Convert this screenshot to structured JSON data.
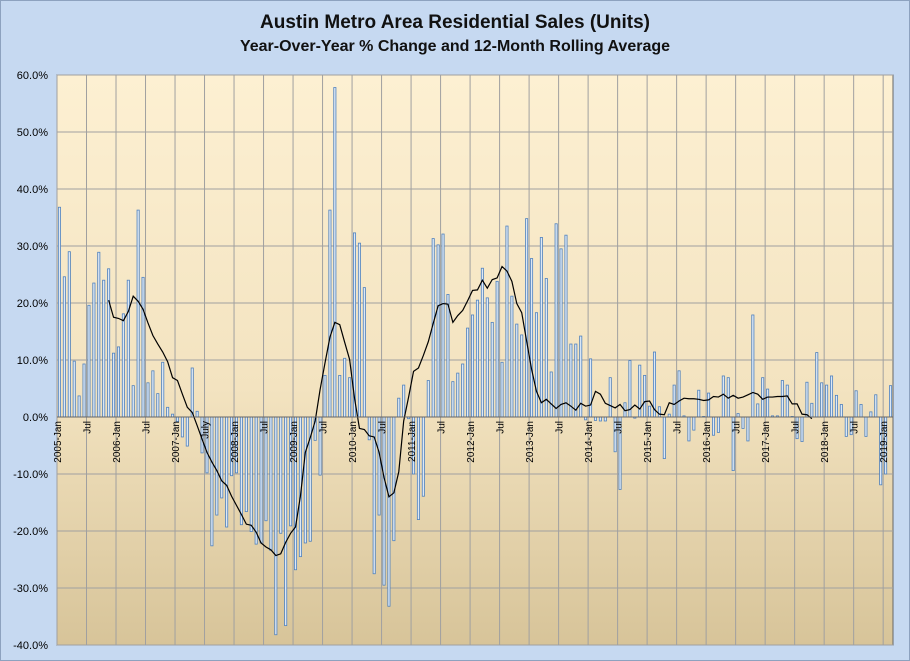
{
  "chart_data": {
    "type": "bar",
    "title": "Austin Metro Area Residential Sales (Units)",
    "subtitle": "Year-Over-Year % Change and 12-Month Rolling Average",
    "ylim": [
      -40,
      60
    ],
    "ytick_step": 10,
    "y_tick_labels": [
      "60.0%",
      "50.0%",
      "40.0%",
      "30.0%",
      "20.0%",
      "10.0%",
      "0.0%",
      "-10.0%",
      "-20.0%",
      "-30.0%",
      "-40.0%"
    ],
    "x_tick_labels": [
      "2005-Jan",
      "Jul",
      "2006-Jan",
      "Jul",
      "2007-Jan",
      "July",
      "2008-Jan",
      "Jul",
      "2009-Jan",
      "Jul",
      "2010-Jan",
      "Jul",
      "2011-Jan",
      "Jul",
      "2012-Jan",
      "Jul",
      "2013-Jan",
      "Jul",
      "2014-Jan",
      "Jul",
      "2015-Jan",
      "Jul",
      "2016-Jan",
      "Jul",
      "2017-Jan",
      "Jul",
      "2018-Jan",
      "Jul",
      "2019-Jan"
    ],
    "start_month": "2005-Jan",
    "series": [
      {
        "name": "Year-Over-Year % Change",
        "type": "bar",
        "color": "#4f81bd",
        "values": [
          36.8,
          24.6,
          29.0,
          9.8,
          3.7,
          9.3,
          19.6,
          23.5,
          28.9,
          24.0,
          26.0,
          11.2,
          12.3,
          18.1,
          24.0,
          5.5,
          36.3,
          24.5,
          6.0,
          8.1,
          4.1,
          9.6,
          1.7,
          0.5,
          -0.8,
          -3.5,
          -5.1,
          8.6,
          1.0,
          -6.3,
          -9.8,
          -22.6,
          -17.2,
          -14.2,
          -19.3,
          -10.3,
          -9.8,
          -18.9,
          -16.6,
          -20.1,
          -22.3,
          -22.1,
          -18.2,
          -23.4,
          -38.2,
          -20.4,
          -36.6,
          -19.1,
          -26.8,
          -24.5,
          -22.1,
          -21.8,
          -4.1,
          -10.2,
          7.3,
          36.3,
          57.8,
          7.3,
          10.3,
          6.9,
          32.3,
          30.5,
          22.7,
          -4.0,
          -27.5,
          -17.2,
          -29.5,
          -33.2,
          -21.7,
          3.3,
          5.6,
          -0.3,
          -10.0,
          -18.0,
          -13.9,
          6.4,
          31.3,
          30.2,
          32.1,
          21.5,
          6.2,
          7.7,
          9.3,
          15.6,
          17.9,
          20.5,
          26.1,
          20.9,
          16.6,
          23.8,
          9.6,
          33.5,
          21.2,
          16.3,
          14.4,
          34.8,
          27.8,
          18.3,
          31.5,
          24.3,
          7.9,
          33.9,
          29.5,
          31.9,
          12.8,
          12.8,
          14.2,
          -0.5,
          10.2,
          -0.6,
          -0.7,
          -0.7,
          6.9,
          -6.1,
          -12.7,
          2.5,
          9.9,
          -0.2,
          9.1,
          7.3,
          1.9,
          11.4,
          1.8,
          -7.3,
          0.5,
          5.6,
          8.1,
          0.2,
          -4.2,
          -2.3,
          4.7,
          0.1,
          4.2,
          -3.2,
          -2.7,
          7.2,
          6.9,
          -9.4,
          0.6,
          -2.0,
          -4.2,
          17.9,
          2.3,
          6.9,
          4.9,
          0.2,
          0.2,
          6.4,
          5.6,
          0.1,
          -3.8,
          -4.3,
          6.1,
          2.4,
          11.3,
          6.0,
          5.6,
          7.2,
          3.8,
          2.2,
          -3.4,
          -3.1,
          4.6,
          2.2,
          -3.4,
          0.9,
          3.9,
          -11.9,
          -10.0,
          5.5
        ]
      },
      {
        "name": "12-Month Rolling Average",
        "type": "line",
        "color": "#000000",
        "start_index": 10,
        "values": [
          20.5,
          17.5,
          17.3,
          16.9,
          18.5,
          21.2,
          20.3,
          18.9,
          16.5,
          14.3,
          12.8,
          11.4,
          9.7,
          6.9,
          6.4,
          4.0,
          1.7,
          0.8,
          -1.5,
          -3.9,
          -6.2,
          -7.9,
          -9.4,
          -11.2,
          -12.0,
          -13.9,
          -15.5,
          -17.1,
          -18.8,
          -19.0,
          -20.2,
          -22.1,
          -22.8,
          -23.3,
          -24.3,
          -24.0,
          -22.0,
          -20.4,
          -19.3,
          -13.9,
          -6.2,
          -3.6,
          -0.7,
          4.8,
          9.5,
          14.0,
          16.6,
          16.2,
          13.1,
          10.1,
          3.3,
          -2.0,
          -2.2,
          -3.3,
          -3.5,
          -6.2,
          -10.6,
          -14.0,
          -13.3,
          -9.6,
          -0.7,
          3.5,
          8.0,
          8.6,
          10.8,
          13.2,
          16.4,
          19.5,
          19.9,
          19.8,
          16.6,
          17.8,
          18.7,
          20.4,
          22.2,
          22.3,
          24.0,
          22.6,
          24.1,
          24.4,
          26.4,
          25.6,
          23.8,
          19.9,
          18.3,
          13.3,
          8.4,
          4.5,
          2.5,
          3.1,
          2.3,
          1.5,
          2.2,
          2.5,
          1.9,
          1.2,
          2.4,
          1.9,
          2.1,
          4.5,
          4.0,
          2.4,
          2.0,
          1.6,
          2.2,
          1.1,
          1.3,
          2.1,
          1.4,
          2.7,
          2.8,
          1.3,
          0.5,
          0.4,
          2.5,
          2.2,
          2.8,
          3.3,
          3.2,
          3.2,
          3.1,
          2.9,
          3.0,
          3.6,
          3.5,
          4.0,
          3.3,
          3.8,
          3.3,
          3.5,
          3.9,
          4.3,
          4.0,
          3.1,
          3.5,
          3.5,
          3.6,
          3.6,
          3.7,
          2.3,
          2.3,
          0.5,
          0.4,
          -0.3
        ]
      }
    ],
    "grid": true
  }
}
